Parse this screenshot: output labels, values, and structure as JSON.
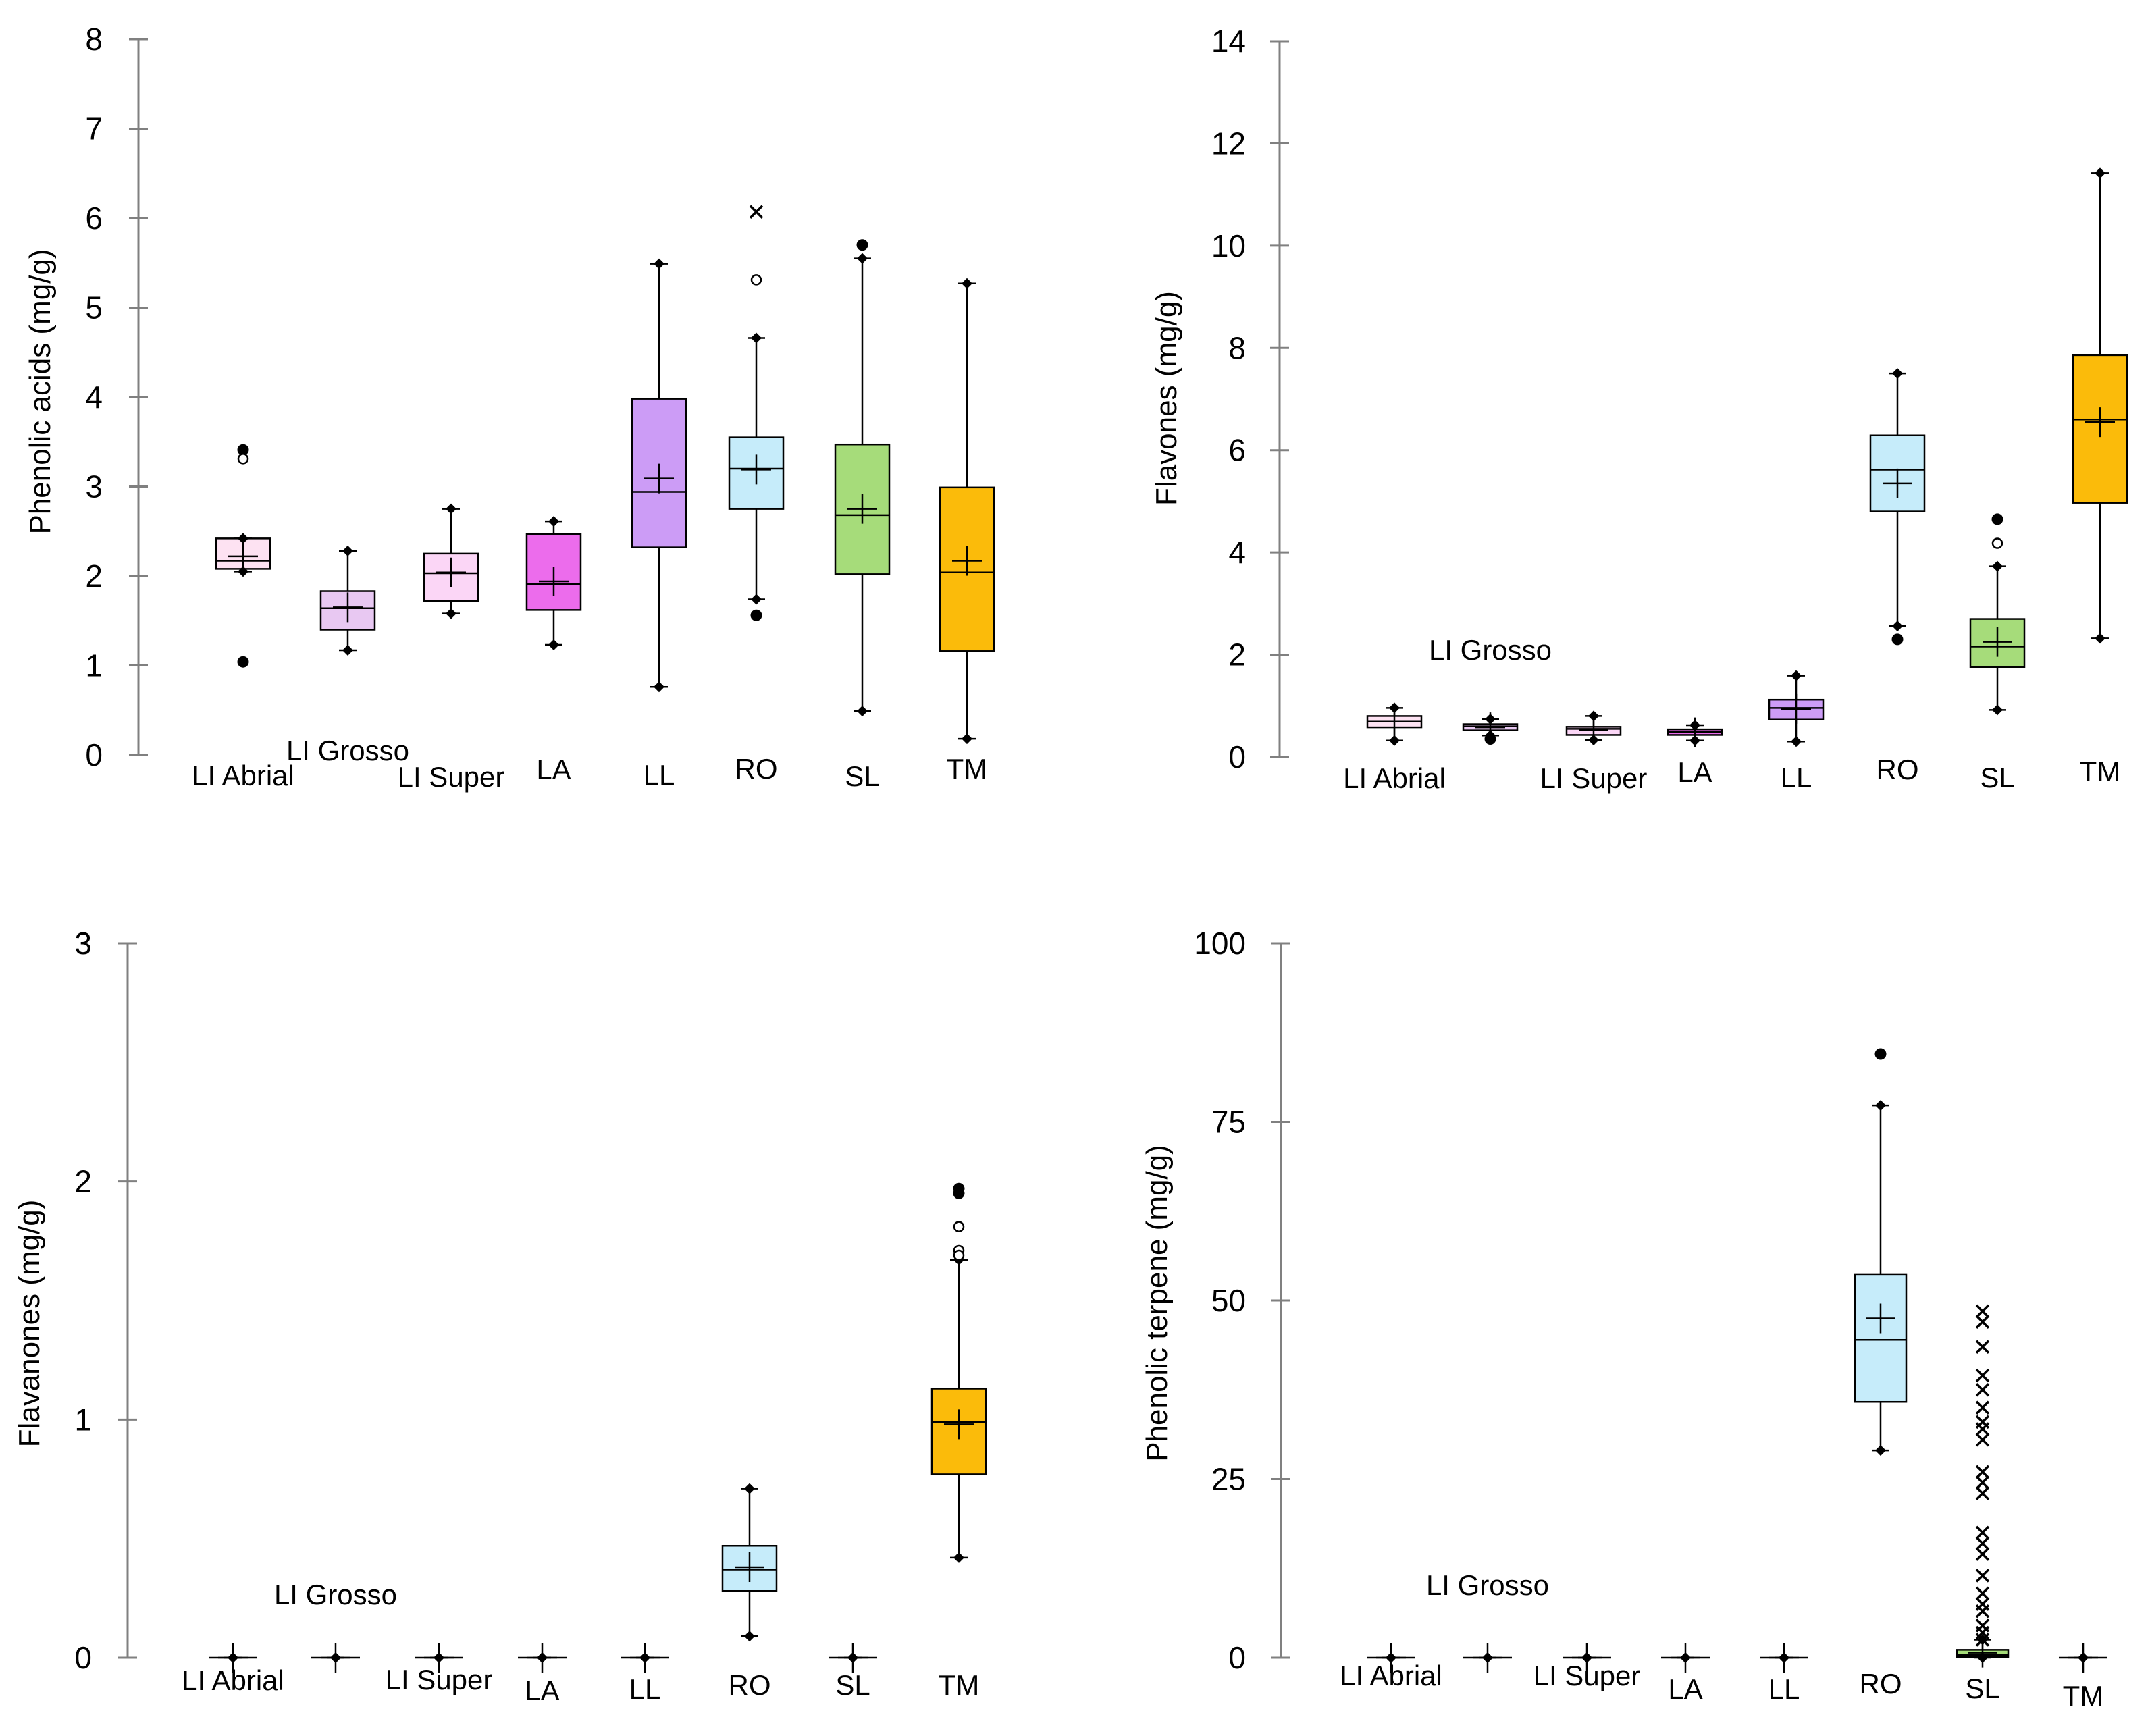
{
  "colors": {
    "LI Abrial": "#fde2f2",
    "LI Grosso": "#e8c8f2",
    "LI Super": "#fbd6f6",
    "LA": "#ec6cec",
    "LL": "#cc9cf6",
    "RO": "#c6ecfa",
    "SL": "#a6dc7a",
    "TM": "#fbbb0a"
  },
  "chart_data": [
    {
      "type": "box",
      "id": "phenolic-acids",
      "ylabel": "Phenolic acids (mg/g)",
      "ylim": [
        0,
        8
      ],
      "yticks": [
        "0",
        "1",
        "2",
        "3",
        "4",
        "5",
        "6",
        "7",
        "8"
      ],
      "category_labels": [
        "LI Abrial",
        "LI Grosso",
        "LI Super",
        "LA",
        "LL",
        "RO",
        "SL",
        "TM"
      ],
      "boxes": [
        {
          "cat": "LI Abrial",
          "color": "LI Abrial",
          "lo": 2.05,
          "q1": 2.08,
          "med": 2.17,
          "q3": 2.42,
          "hi": 2.42,
          "mean": 2.22,
          "outliers": [
            {
              "y": 3.41,
              "s": "dot"
            },
            {
              "y": 3.31,
              "s": "circle"
            },
            {
              "y": 1.04,
              "s": "dot"
            }
          ]
        },
        {
          "cat": "LI Grosso",
          "color": "LI Grosso",
          "lo": 1.17,
          "q1": 1.4,
          "med": 1.64,
          "q3": 1.83,
          "hi": 2.28,
          "mean": 1.65,
          "outliers": []
        },
        {
          "cat": "LI Super",
          "color": "LI Super",
          "lo": 1.58,
          "q1": 1.72,
          "med": 2.03,
          "q3": 2.25,
          "hi": 2.75,
          "mean": 2.04,
          "outliers": []
        },
        {
          "cat": "LA",
          "color": "LA",
          "lo": 1.23,
          "q1": 1.62,
          "med": 1.91,
          "q3": 2.47,
          "hi": 2.61,
          "mean": 1.94,
          "outliers": []
        },
        {
          "cat": "LL",
          "color": "LL",
          "lo": 0.76,
          "q1": 2.32,
          "med": 2.94,
          "q3": 3.98,
          "hi": 5.49,
          "mean": 3.09,
          "outliers": []
        },
        {
          "cat": "RO",
          "color": "RO",
          "lo": 1.74,
          "q1": 2.75,
          "med": 3.2,
          "q3": 3.55,
          "hi": 4.66,
          "mean": 3.19,
          "outliers": [
            {
              "y": 6.07,
              "s": "star"
            },
            {
              "y": 5.31,
              "s": "circle"
            },
            {
              "y": 1.56,
              "s": "dot"
            }
          ]
        },
        {
          "cat": "SL",
          "color": "SL",
          "lo": 0.49,
          "q1": 2.02,
          "med": 2.68,
          "q3": 3.47,
          "hi": 5.55,
          "mean": 2.75,
          "outliers": [
            {
              "y": 5.7,
              "s": "dot"
            }
          ]
        },
        {
          "cat": "TM",
          "color": "TM",
          "lo": 0.18,
          "q1": 1.16,
          "med": 2.04,
          "q3": 2.99,
          "hi": 5.27,
          "mean": 2.17,
          "outliers": []
        }
      ]
    },
    {
      "type": "box",
      "id": "flavones",
      "ylabel": "Flavones (mg/g)",
      "ylim": [
        0,
        14
      ],
      "yticks": [
        "0",
        "2",
        "4",
        "6",
        "8",
        "10",
        "12",
        "14"
      ],
      "category_labels": [
        "LI Abrial",
        "LI Grosso",
        "LI Super",
        "LA",
        "LL",
        "RO",
        "SL",
        "TM"
      ],
      "boxes": [
        {
          "cat": "LI Abrial",
          "color": "LI Abrial",
          "lo": 0.32,
          "q1": 0.58,
          "med": 0.69,
          "q3": 0.8,
          "hi": 0.96,
          "mean": 0.69,
          "outliers": []
        },
        {
          "cat": "LI Grosso",
          "color": "LI Grosso",
          "lo": 0.42,
          "q1": 0.52,
          "med": 0.6,
          "q3": 0.64,
          "hi": 0.74,
          "mean": 0.58,
          "outliers": [
            {
              "y": 0.35,
              "s": "dot"
            }
          ]
        },
        {
          "cat": "LI Super",
          "color": "LI Super",
          "lo": 0.33,
          "q1": 0.43,
          "med": 0.55,
          "q3": 0.59,
          "hi": 0.8,
          "mean": 0.52,
          "outliers": []
        },
        {
          "cat": "LA",
          "color": "LA",
          "lo": 0.32,
          "q1": 0.43,
          "med": 0.49,
          "q3": 0.54,
          "hi": 0.62,
          "mean": 0.48,
          "outliers": []
        },
        {
          "cat": "LL",
          "color": "LL",
          "lo": 0.3,
          "q1": 0.73,
          "med": 0.96,
          "q3": 1.12,
          "hi": 1.59,
          "mean": 0.94,
          "outliers": []
        },
        {
          "cat": "RO",
          "color": "RO",
          "lo": 2.56,
          "q1": 4.8,
          "med": 5.62,
          "q3": 6.29,
          "hi": 7.5,
          "mean": 5.35,
          "outliers": [
            {
              "y": 2.3,
              "s": "dot"
            }
          ]
        },
        {
          "cat": "SL",
          "color": "SL",
          "lo": 0.92,
          "q1": 1.76,
          "med": 2.16,
          "q3": 2.7,
          "hi": 3.73,
          "mean": 2.25,
          "outliers": [
            {
              "y": 4.65,
              "s": "dot"
            },
            {
              "y": 4.18,
              "s": "circle"
            }
          ]
        },
        {
          "cat": "TM",
          "color": "TM",
          "lo": 2.32,
          "q1": 4.97,
          "med": 6.6,
          "q3": 7.86,
          "hi": 11.42,
          "mean": 6.55,
          "outliers": []
        }
      ]
    },
    {
      "type": "box",
      "id": "flavanones",
      "ylabel": "Flavanones (mg/g)",
      "ylim": [
        0,
        3
      ],
      "yticks": [
        "0",
        "1",
        "2",
        "3"
      ],
      "category_labels": [
        "LI Abrial",
        "LI Grosso",
        "LI Super",
        "LA",
        "LL",
        "RO",
        "SL",
        "TM"
      ],
      "boxes": [
        {
          "cat": "LI Abrial",
          "color": "LI Abrial",
          "lo": 0,
          "q1": 0,
          "med": 0,
          "q3": 0,
          "hi": 0,
          "mean": 0,
          "outliers": []
        },
        {
          "cat": "LI Grosso",
          "color": "LI Grosso",
          "lo": 0,
          "q1": 0,
          "med": 0,
          "q3": 0,
          "hi": 0,
          "mean": 0,
          "outliers": []
        },
        {
          "cat": "LI Super",
          "color": "LI Super",
          "lo": 0,
          "q1": 0,
          "med": 0,
          "q3": 0,
          "hi": 0,
          "mean": 0,
          "outliers": []
        },
        {
          "cat": "LA",
          "color": "LA",
          "lo": 0,
          "q1": 0,
          "med": 0,
          "q3": 0,
          "hi": 0,
          "mean": 0,
          "outliers": []
        },
        {
          "cat": "LL",
          "color": "LL",
          "lo": 0,
          "q1": 0,
          "med": 0,
          "q3": 0,
          "hi": 0,
          "mean": 0,
          "outliers": []
        },
        {
          "cat": "RO",
          "color": "RO",
          "lo": 0.09,
          "q1": 0.28,
          "med": 0.37,
          "q3": 0.47,
          "hi": 0.71,
          "mean": 0.38,
          "outliers": []
        },
        {
          "cat": "SL",
          "color": "SL",
          "lo": 0,
          "q1": 0,
          "med": 0,
          "q3": 0,
          "hi": 0,
          "mean": 0,
          "outliers": []
        },
        {
          "cat": "TM",
          "color": "TM",
          "lo": 0.42,
          "q1": 0.77,
          "med": 0.99,
          "q3": 1.13,
          "hi": 1.67,
          "mean": 0.98,
          "outliers": [
            {
              "y": 1.97,
              "s": "dot"
            },
            {
              "y": 1.95,
              "s": "dot"
            },
            {
              "y": 1.81,
              "s": "circle"
            },
            {
              "y": 1.71,
              "s": "circle"
            },
            {
              "y": 1.69,
              "s": "circle"
            }
          ]
        }
      ]
    },
    {
      "type": "box",
      "id": "phenolic-terpene",
      "ylabel": "Phenolic terpene (mg/g)",
      "ylim": [
        0,
        100
      ],
      "yticks": [
        "0",
        "25",
        "50",
        "75",
        "100"
      ],
      "category_labels": [
        "LI Abrial",
        "LI Grosso",
        "LI Super",
        "LA",
        "LL",
        "RO",
        "SL",
        "TM"
      ],
      "boxes": [
        {
          "cat": "LI Abrial",
          "color": "LI Abrial",
          "lo": 0,
          "q1": 0,
          "med": 0,
          "q3": 0,
          "hi": 0,
          "mean": 0,
          "outliers": []
        },
        {
          "cat": "LI Grosso",
          "color": "LI Grosso",
          "lo": 0,
          "q1": 0,
          "med": 0,
          "q3": 0,
          "hi": 0,
          "mean": 0,
          "outliers": []
        },
        {
          "cat": "LI Super",
          "color": "LI Super",
          "lo": 0,
          "q1": 0,
          "med": 0,
          "q3": 0,
          "hi": 0,
          "mean": 0,
          "outliers": []
        },
        {
          "cat": "LA",
          "color": "LA",
          "lo": 0,
          "q1": 0,
          "med": 0,
          "q3": 0,
          "hi": 0,
          "mean": 0,
          "outliers": []
        },
        {
          "cat": "LL",
          "color": "LL",
          "lo": 0,
          "q1": 0,
          "med": 0,
          "q3": 0,
          "hi": 0,
          "mean": 0,
          "outliers": []
        },
        {
          "cat": "RO",
          "color": "RO",
          "lo": 29.0,
          "q1": 35.8,
          "med": 44.5,
          "q3": 53.6,
          "hi": 77.3,
          "mean": 47.5,
          "outliers": [
            {
              "y": 84.5,
              "s": "dot"
            }
          ]
        },
        {
          "cat": "SL",
          "color": "SL",
          "lo": 0,
          "q1": 0.1,
          "med": 0.4,
          "q3": 1.1,
          "hi": 2.5,
          "mean": 0.7,
          "outliers": [
            {
              "y": 48.5,
              "s": "star"
            },
            {
              "y": 47.0,
              "s": "star"
            },
            {
              "y": 43.5,
              "s": "star"
            },
            {
              "y": 39.5,
              "s": "star"
            },
            {
              "y": 37.5,
              "s": "star"
            },
            {
              "y": 35.0,
              "s": "star"
            },
            {
              "y": 33.0,
              "s": "star"
            },
            {
              "y": 32.0,
              "s": "star"
            },
            {
              "y": 30.5,
              "s": "star"
            },
            {
              "y": 26.0,
              "s": "star"
            },
            {
              "y": 24.5,
              "s": "star"
            },
            {
              "y": 23.0,
              "s": "star"
            },
            {
              "y": 17.5,
              "s": "star"
            },
            {
              "y": 16.0,
              "s": "star"
            },
            {
              "y": 14.5,
              "s": "star"
            },
            {
              "y": 11.5,
              "s": "star"
            },
            {
              "y": 9.0,
              "s": "star"
            },
            {
              "y": 7.5,
              "s": "star"
            },
            {
              "y": 6.5,
              "s": "star"
            },
            {
              "y": 4.5,
              "s": "star"
            },
            {
              "y": 3.5,
              "s": "star"
            },
            {
              "y": 2.5,
              "s": "star"
            }
          ]
        },
        {
          "cat": "TM",
          "color": "TM",
          "lo": 0,
          "q1": 0,
          "med": 0,
          "q3": 0,
          "hi": 0,
          "mean": 0,
          "outliers": []
        }
      ]
    }
  ]
}
